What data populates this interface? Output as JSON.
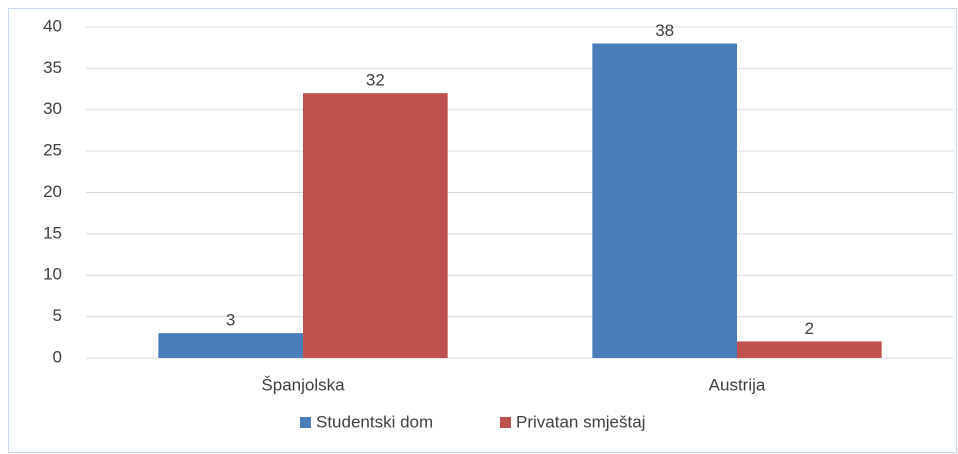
{
  "chart_data": {
    "type": "bar",
    "categories": [
      "Španjolska",
      "Austrija"
    ],
    "series": [
      {
        "name": "Studentski dom",
        "color": "#4a7ebb",
        "values": [
          3,
          38
        ]
      },
      {
        "name": "Privatan smještaj",
        "color": "#c0504d",
        "values": [
          32,
          2
        ]
      }
    ],
    "ylim": [
      0,
      40
    ],
    "yticks": [
      0,
      5,
      10,
      15,
      20,
      25,
      30,
      35,
      40
    ],
    "grid": true,
    "legend": "bottom"
  }
}
